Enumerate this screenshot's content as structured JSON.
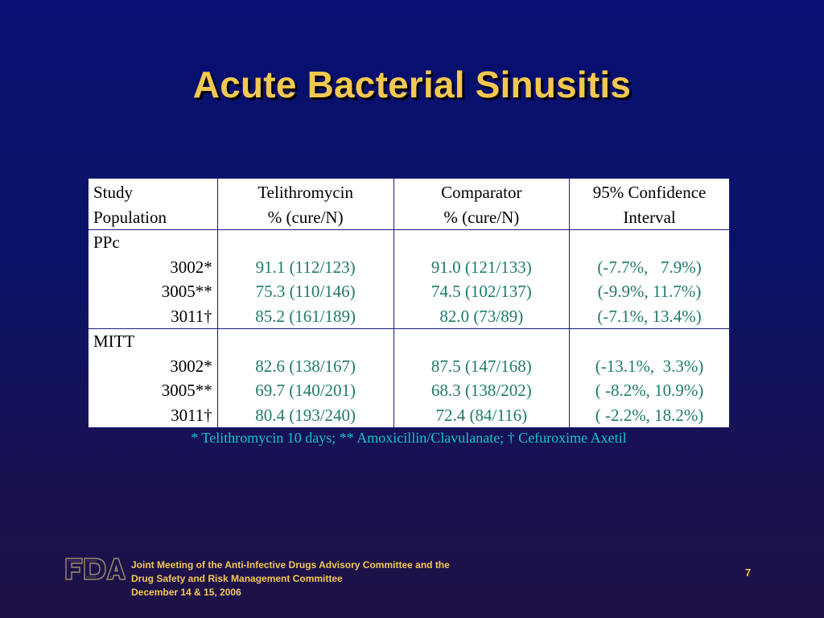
{
  "slide": {
    "title": "Acute Bacterial Sinusitis",
    "page_number": "7"
  },
  "table": {
    "headers": [
      {
        "line1": "Study",
        "line2": "Population"
      },
      {
        "line1": "Telithromycin",
        "line2": "% (cure/N)"
      },
      {
        "line1": "Comparator",
        "line2": "% (cure/N)"
      },
      {
        "line1": "95% Confidence",
        "line2": "Interval"
      }
    ],
    "groups": [
      {
        "label": "PPc",
        "rows": [
          {
            "study": "3002*",
            "telithromycin": "91.1 (112/123)",
            "comparator": "91.0 (121/133)",
            "ci": "(-7.7%,   7.9%)"
          },
          {
            "study": "3005**",
            "telithromycin": "75.3 (110/146)",
            "comparator": "74.5 (102/137)",
            "ci": "(-9.9%, 11.7%)"
          },
          {
            "study": "3011†",
            "telithromycin": "85.2 (161/189)",
            "comparator": "82.0 (73/89)",
            "ci": "(-7.1%, 13.4%)"
          }
        ]
      },
      {
        "label": "MITT",
        "rows": [
          {
            "study": "3002*",
            "telithromycin": "82.6 (138/167)",
            "comparator": "87.5 (147/168)",
            "ci": "(-13.1%,  3.3%)"
          },
          {
            "study": "3005**",
            "telithromycin": "69.7 (140/201)",
            "comparator": "68.3 (138/202)",
            "ci": "( -8.2%, 10.9%)"
          },
          {
            "study": "3011†",
            "telithromycin": "80.4 (193/240)",
            "comparator": "72.4 (84/116)",
            "ci": "( -2.2%, 18.2%)"
          }
        ]
      }
    ],
    "footnote": "* Telithromycin 10 days; ** Amoxicillin/Clavulanate; † Cefuroxime Axetil"
  },
  "footer": {
    "logo_text": "FDA",
    "lines": [
      "Joint Meeting of the Anti-Infective Drugs Advisory Committee and the",
      "Drug Safety and Risk Management Committee",
      "December 14 & 15, 2006"
    ]
  },
  "colors": {
    "background_top": "#070f72",
    "background_bottom": "#1f1146",
    "title": "#f3c850",
    "table_values": "#1f7a6a",
    "footnote": "#16c4c4",
    "footer_text": "#f3c850",
    "fda_logo": "#9e8e6e"
  }
}
